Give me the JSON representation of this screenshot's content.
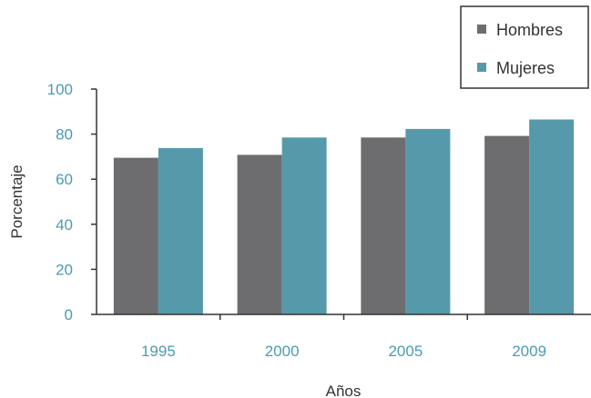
{
  "chart_data": {
    "type": "bar",
    "title": "",
    "xlabel": "Años",
    "ylabel": "Porcentaje",
    "categories": [
      "1995",
      "2000",
      "2005",
      "2009"
    ],
    "series": [
      {
        "name": "Hombres",
        "values": [
          69.5,
          70.8,
          78.5,
          79.2
        ],
        "color": "#6d6d70"
      },
      {
        "name": "Mujeres",
        "values": [
          73.8,
          78.5,
          82.3,
          86.5
        ],
        "color": "#5699aa"
      }
    ],
    "ylim": [
      0,
      100
    ],
    "yticks": [
      "0",
      "20",
      "40",
      "60",
      "80",
      "100"
    ],
    "grid": false,
    "legend_position": "top-right"
  }
}
